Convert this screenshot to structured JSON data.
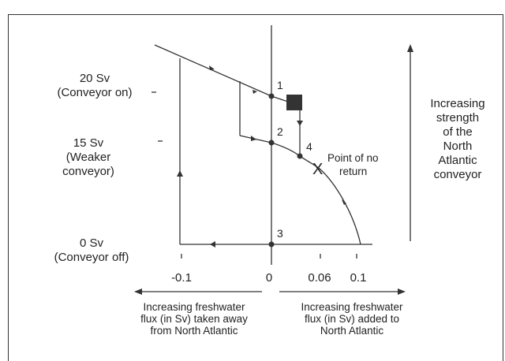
{
  "y_levels": [
    {
      "value": "20 Sv",
      "desc": "(Conveyor on)"
    },
    {
      "value": "15 Sv",
      "desc": "(Weaker",
      "desc2": "conveyor)"
    },
    {
      "value": "0 Sv",
      "desc": "(Conveyor off)"
    }
  ],
  "x_ticks": [
    "-0.1",
    "0",
    "0.06",
    "0.1"
  ],
  "points": [
    "1",
    "2",
    "3",
    "4"
  ],
  "no_return": {
    "marker": "X",
    "line1": "Point of no",
    "line2": "return"
  },
  "right_caption": [
    "Increasing",
    "strength",
    "of the",
    "North",
    "Atlantic",
    "conveyor"
  ],
  "left_caption": [
    "Increasing freshwater",
    "flux (in Sv) taken away",
    "from North Atlantic"
  ],
  "right_bottom_caption": [
    "Increasing freshwater",
    "flux (in Sv) added to",
    "North Atlantic"
  ]
}
